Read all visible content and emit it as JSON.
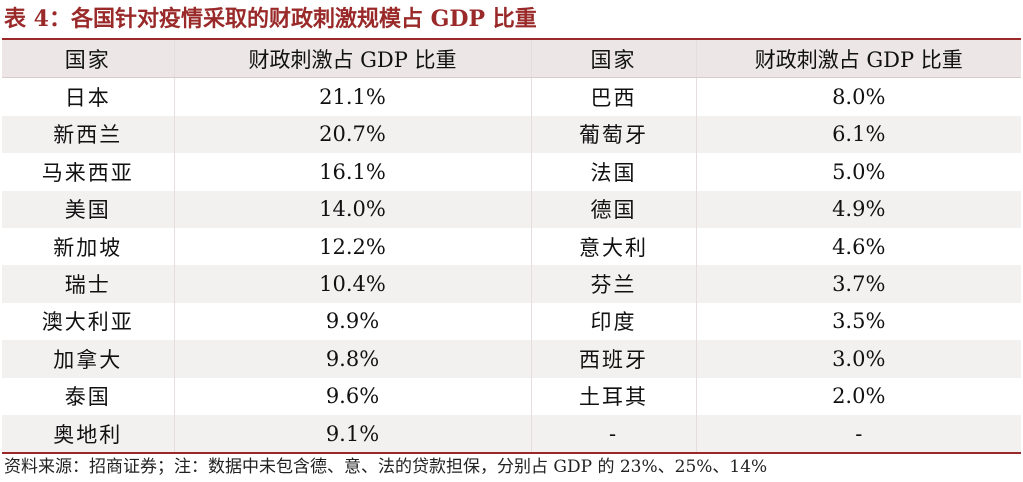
{
  "title": "表 4：各国针对疫情采取的财政刺激规模占 GDP 比重",
  "headers": [
    "国家",
    "财政刺激占 GDP 比重",
    "国家",
    "财政刺激占 GDP 比重"
  ],
  "rows": [
    {
      "c1": "日本",
      "v1": "21.1%",
      "c2": "巴西",
      "v2": "8.0%"
    },
    {
      "c1": "新西兰",
      "v1": "20.7%",
      "c2": "葡萄牙",
      "v2": "6.1%"
    },
    {
      "c1": "马来西亚",
      "v1": "16.1%",
      "c2": "法国",
      "v2": "5.0%"
    },
    {
      "c1": "美国",
      "v1": "14.0%",
      "c2": "德国",
      "v2": "4.9%"
    },
    {
      "c1": "新加坡",
      "v1": "12.2%",
      "c2": "意大利",
      "v2": "4.6%"
    },
    {
      "c1": "瑞士",
      "v1": "10.4%",
      "c2": "芬兰",
      "v2": "3.7%"
    },
    {
      "c1": "澳大利亚",
      "v1": "9.9%",
      "c2": "印度",
      "v2": "3.5%"
    },
    {
      "c1": "加拿大",
      "v1": "9.8%",
      "c2": "西班牙",
      "v2": "3.0%"
    },
    {
      "c1": "泰国",
      "v1": "9.6%",
      "c2": "土耳其",
      "v2": "2.0%"
    },
    {
      "c1": "奥地利",
      "v1": "9.1%",
      "c2": "-",
      "v2": "-"
    }
  ],
  "source": "资料来源：招商证券；注：数据中未包含德、意、法的贷款担保，分别占 GDP 的 23%、25%、14%",
  "colors": {
    "accent": "#9a2a2a",
    "header_bg": "#ece6e6",
    "stripe_bg": "#f3f0f0"
  }
}
